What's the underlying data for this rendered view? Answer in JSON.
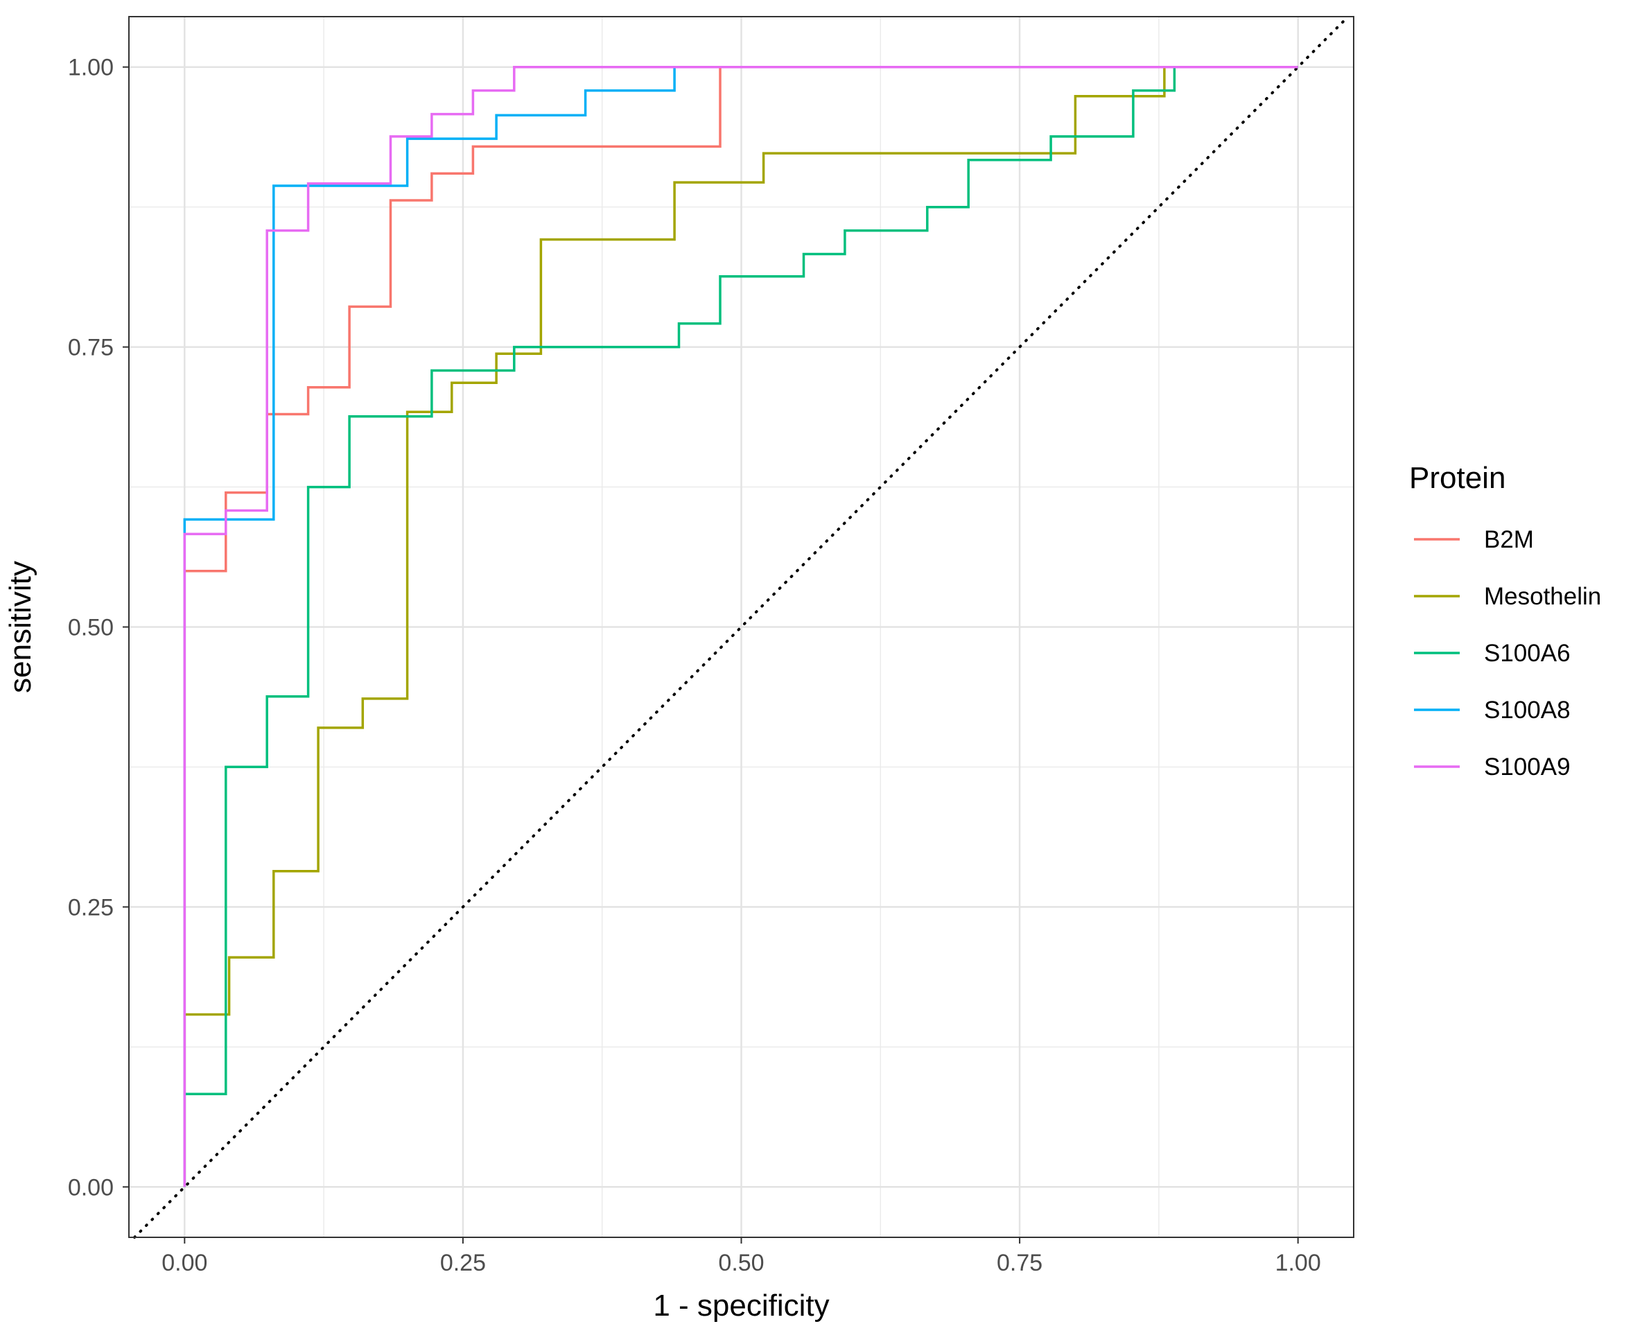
{
  "chart_data": {
    "type": "line",
    "title": "",
    "xlabel": "1 - specificity",
    "ylabel": "sensitivity",
    "xlim": [
      -0.05,
      1.05
    ],
    "ylim": [
      -0.045,
      1.045
    ],
    "x_ticks": [
      0,
      0.25,
      0.5,
      0.75,
      1
    ],
    "x_tick_labels": [
      "0.00",
      "0.25",
      "0.50",
      "0.75",
      "1.00"
    ],
    "y_ticks": [
      0,
      0.25,
      0.5,
      0.75,
      1
    ],
    "y_tick_labels": [
      "0.00",
      "0.25",
      "0.50",
      "0.75",
      "1.00"
    ],
    "grid": true,
    "legend_title": "Protein",
    "legend_position": "right",
    "reference_line": {
      "style": "dotted",
      "from": [
        -0.045,
        -0.045
      ],
      "to": [
        1.045,
        1.045
      ],
      "color": "#000000"
    },
    "series": [
      {
        "name": "B2M",
        "color": "#F8766D",
        "points": [
          [
            0,
            0
          ],
          [
            0,
            0.55
          ],
          [
            0.037,
            0.55
          ],
          [
            0.037,
            0.62
          ],
          [
            0.074,
            0.62
          ],
          [
            0.074,
            0.69
          ],
          [
            0.111,
            0.69
          ],
          [
            0.111,
            0.714
          ],
          [
            0.148,
            0.714
          ],
          [
            0.148,
            0.786
          ],
          [
            0.185,
            0.786
          ],
          [
            0.185,
            0.881
          ],
          [
            0.222,
            0.881
          ],
          [
            0.222,
            0.905
          ],
          [
            0.259,
            0.905
          ],
          [
            0.259,
            0.929
          ],
          [
            0.481,
            0.929
          ],
          [
            0.481,
            1
          ],
          [
            1,
            1
          ]
        ]
      },
      {
        "name": "Mesothelin",
        "color": "#A3A500",
        "points": [
          [
            0,
            0
          ],
          [
            0,
            0.154
          ],
          [
            0.04,
            0.154
          ],
          [
            0.04,
            0.205
          ],
          [
            0.08,
            0.205
          ],
          [
            0.08,
            0.282
          ],
          [
            0.12,
            0.282
          ],
          [
            0.12,
            0.41
          ],
          [
            0.16,
            0.41
          ],
          [
            0.16,
            0.436
          ],
          [
            0.2,
            0.436
          ],
          [
            0.2,
            0.692
          ],
          [
            0.24,
            0.692
          ],
          [
            0.24,
            0.718
          ],
          [
            0.28,
            0.718
          ],
          [
            0.28,
            0.744
          ],
          [
            0.32,
            0.744
          ],
          [
            0.32,
            0.846
          ],
          [
            0.44,
            0.846
          ],
          [
            0.44,
            0.897
          ],
          [
            0.52,
            0.897
          ],
          [
            0.52,
            0.923
          ],
          [
            0.8,
            0.923
          ],
          [
            0.8,
            0.974
          ],
          [
            0.88,
            0.974
          ],
          [
            0.88,
            1
          ],
          [
            1,
            1
          ]
        ]
      },
      {
        "name": "S100A6",
        "color": "#00BF7D",
        "points": [
          [
            0,
            0
          ],
          [
            0,
            0.083
          ],
          [
            0.037,
            0.083
          ],
          [
            0.037,
            0.375
          ],
          [
            0.074,
            0.375
          ],
          [
            0.074,
            0.438
          ],
          [
            0.111,
            0.438
          ],
          [
            0.111,
            0.625
          ],
          [
            0.148,
            0.625
          ],
          [
            0.148,
            0.688
          ],
          [
            0.222,
            0.688
          ],
          [
            0.222,
            0.729
          ],
          [
            0.296,
            0.729
          ],
          [
            0.296,
            0.75
          ],
          [
            0.444,
            0.75
          ],
          [
            0.444,
            0.771
          ],
          [
            0.481,
            0.771
          ],
          [
            0.481,
            0.813
          ],
          [
            0.556,
            0.813
          ],
          [
            0.556,
            0.833
          ],
          [
            0.593,
            0.833
          ],
          [
            0.593,
            0.854
          ],
          [
            0.667,
            0.854
          ],
          [
            0.667,
            0.875
          ],
          [
            0.704,
            0.875
          ],
          [
            0.704,
            0.917
          ],
          [
            0.778,
            0.917
          ],
          [
            0.778,
            0.938
          ],
          [
            0.852,
            0.938
          ],
          [
            0.852,
            0.979
          ],
          [
            0.889,
            0.979
          ],
          [
            0.889,
            1
          ],
          [
            1,
            1
          ]
        ]
      },
      {
        "name": "S100A8",
        "color": "#00B0F6",
        "points": [
          [
            0,
            0
          ],
          [
            0,
            0.596
          ],
          [
            0.08,
            0.596
          ],
          [
            0.08,
            0.894
          ],
          [
            0.2,
            0.894
          ],
          [
            0.2,
            0.936
          ],
          [
            0.28,
            0.936
          ],
          [
            0.28,
            0.957
          ],
          [
            0.36,
            0.957
          ],
          [
            0.36,
            0.979
          ],
          [
            0.44,
            0.979
          ],
          [
            0.44,
            1
          ],
          [
            1,
            1
          ]
        ]
      },
      {
        "name": "S100A9",
        "color": "#E76BF3",
        "points": [
          [
            0,
            0
          ],
          [
            0,
            0.583
          ],
          [
            0.037,
            0.583
          ],
          [
            0.037,
            0.604
          ],
          [
            0.074,
            0.604
          ],
          [
            0.074,
            0.854
          ],
          [
            0.111,
            0.854
          ],
          [
            0.111,
            0.896
          ],
          [
            0.185,
            0.896
          ],
          [
            0.185,
            0.938
          ],
          [
            0.222,
            0.938
          ],
          [
            0.222,
            0.958
          ],
          [
            0.259,
            0.958
          ],
          [
            0.259,
            0.979
          ],
          [
            0.296,
            0.979
          ],
          [
            0.296,
            1
          ],
          [
            1,
            1
          ]
        ]
      }
    ]
  }
}
